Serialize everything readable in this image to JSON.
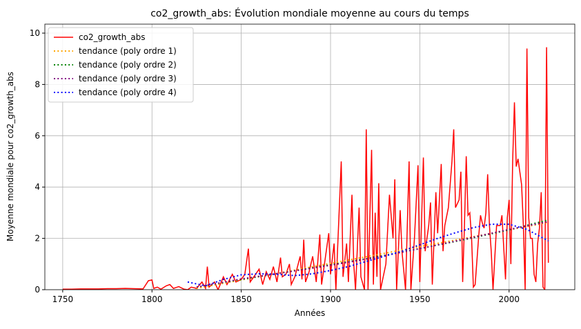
{
  "chart_data": {
    "type": "line",
    "title": "co2_growth_abs: Évolution mondiale moyenne au cours du temps",
    "xlabel": "Années",
    "ylabel": "Moyenne mondiale pour co2_growth_abs",
    "xlim": [
      1740,
      2036.8
    ],
    "xticks": [
      1750,
      1800,
      1850,
      1900,
      1950,
      2000
    ],
    "ylim": [
      0,
      10.35
    ],
    "yticks": [
      0,
      2,
      4,
      6,
      8,
      10
    ],
    "grid": true,
    "legend": "upper-left",
    "series": [
      {
        "name": "co2_growth_abs",
        "color": "#ff0000",
        "linestyle": "solid",
        "x": [
          1750,
          1755,
          1760,
          1765,
          1770,
          1775,
          1780,
          1785,
          1790,
          1795,
          1798,
          1800,
          1801,
          1803,
          1805,
          1808,
          1810,
          1812,
          1815,
          1818,
          1820,
          1822,
          1825,
          1828,
          1830,
          1831,
          1832,
          1835,
          1837,
          1840,
          1842,
          1845,
          1847,
          1850,
          1852,
          1854,
          1855,
          1857,
          1860,
          1862,
          1864,
          1866,
          1868,
          1870,
          1872,
          1873,
          1875,
          1877,
          1878,
          1880,
          1883,
          1884,
          1885,
          1886,
          1888,
          1890,
          1892,
          1894,
          1895,
          1897,
          1899,
          1900,
          1902,
          1903,
          1906,
          1907,
          1909,
          1910,
          1912,
          1913,
          1914,
          1916,
          1917,
          1919,
          1920,
          1921,
          1923,
          1924,
          1925,
          1926,
          1927,
          1928,
          1931,
          1933,
          1935,
          1936,
          1937,
          1939,
          1940,
          1942,
          1944,
          1945,
          1947,
          1949,
          1950,
          1952,
          1953,
          1955,
          1956,
          1957,
          1959,
          1960,
          1962,
          1963,
          1964,
          1966,
          1968,
          1969,
          1970,
          1972,
          1973,
          1974,
          1975,
          1976,
          1977,
          1978,
          1979,
          1980,
          1981,
          1983,
          1984,
          1985,
          1986,
          1987,
          1988,
          1989,
          1990,
          1991,
          1993,
          1995,
          1996,
          1998,
          1999,
          2000,
          2001,
          2002,
          2003,
          2004,
          2005,
          2006,
          2007,
          2008,
          2009,
          2010,
          2011,
          2012,
          2013,
          2014,
          2015,
          2016,
          2017,
          2018,
          2019,
          2020,
          2021,
          2022
        ],
        "values": [
          0.02,
          0.02,
          0.03,
          0.03,
          0.03,
          0.04,
          0.04,
          0.05,
          0.04,
          0.03,
          0.35,
          0.38,
          0.05,
          0.1,
          0.02,
          0.15,
          0.2,
          0.05,
          0.12,
          0.02,
          0.0,
          0.1,
          0.05,
          0.3,
          0.05,
          0.9,
          0.1,
          0.3,
          0.0,
          0.5,
          0.2,
          0.6,
          0.3,
          0.4,
          0.6,
          1.6,
          0.3,
          0.5,
          0.8,
          0.2,
          0.7,
          0.4,
          0.9,
          0.3,
          1.25,
          0.5,
          0.6,
          1.0,
          0.2,
          0.5,
          1.3,
          0.4,
          1.95,
          0.3,
          0.7,
          1.3,
          0.3,
          2.15,
          0.2,
          1.2,
          2.2,
          0.6,
          1.8,
          0.0,
          5.0,
          0.5,
          1.8,
          0.3,
          3.7,
          1.0,
          0.0,
          3.2,
          0.5,
          0.0,
          6.25,
          0.0,
          5.45,
          0.2,
          3.0,
          0.5,
          4.15,
          0.0,
          1.0,
          3.7,
          2.0,
          4.3,
          0.0,
          3.1,
          1.5,
          0.0,
          5.0,
          0.0,
          2.0,
          4.85,
          0.3,
          5.15,
          1.5,
          2.5,
          3.4,
          0.2,
          3.8,
          2.2,
          4.9,
          1.5,
          2.5,
          3.2,
          5.0,
          6.25,
          3.2,
          3.5,
          4.6,
          0.3,
          2.5,
          5.2,
          2.9,
          3.0,
          2.0,
          0.1,
          0.2,
          2.1,
          2.9,
          2.6,
          2.4,
          3.0,
          4.5,
          2.5,
          1.5,
          0.0,
          2.5,
          2.5,
          2.9,
          0.4,
          2.8,
          3.5,
          1.0,
          5.0,
          7.3,
          4.8,
          5.1,
          4.6,
          4.1,
          2.5,
          0.0,
          9.4,
          2.8,
          2.0,
          2.0,
          0.6,
          0.3,
          1.8,
          2.4,
          3.8,
          0.1,
          0.0,
          9.45,
          1.05
        ]
      },
      {
        "name": "tendance (poly ordre 1)",
        "color": "#ffa500",
        "linestyle": "dotted",
        "x": [
          1825,
          1850,
          1875,
          1900,
          1925,
          1950,
          1975,
          2000,
          2022
        ],
        "values": [
          0.05,
          0.38,
          0.7,
          1.03,
          1.35,
          1.68,
          2.0,
          2.33,
          2.62
        ]
      },
      {
        "name": "tendance (poly ordre 2)",
        "color": "#008000",
        "linestyle": "dotted",
        "x": [
          1825,
          1850,
          1875,
          1900,
          1925,
          1950,
          1975,
          2000,
          2022
        ],
        "values": [
          0.1,
          0.4,
          0.68,
          0.97,
          1.27,
          1.6,
          1.95,
          2.33,
          2.72
        ]
      },
      {
        "name": "tendance (poly ordre 3)",
        "color": "#800080",
        "linestyle": "dotted",
        "x": [
          1825,
          1850,
          1875,
          1900,
          1925,
          1950,
          1975,
          2000,
          2022
        ],
        "values": [
          0.1,
          0.42,
          0.68,
          0.95,
          1.25,
          1.6,
          1.97,
          2.35,
          2.65
        ]
      },
      {
        "name": "tendance (poly ordre 4)",
        "color": "#0000ff",
        "linestyle": "dotted",
        "x": [
          1820,
          1830,
          1840,
          1850,
          1860,
          1870,
          1880,
          1890,
          1900,
          1910,
          1920,
          1930,
          1940,
          1950,
          1960,
          1970,
          1980,
          1990,
          2000,
          2010,
          2022
        ],
        "values": [
          0.3,
          0.15,
          0.4,
          0.58,
          0.62,
          0.6,
          0.55,
          0.62,
          0.75,
          0.9,
          1.1,
          1.3,
          1.5,
          1.75,
          2.0,
          2.22,
          2.42,
          2.55,
          2.55,
          2.35,
          1.9
        ]
      }
    ]
  }
}
